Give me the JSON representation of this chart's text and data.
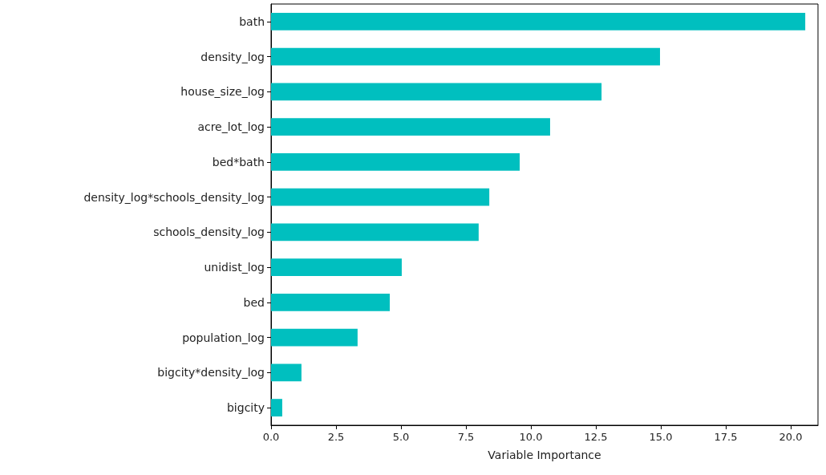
{
  "chart_data": {
    "type": "bar",
    "orientation": "horizontal",
    "xlabel": "Variable Importance",
    "categories": [
      "bath",
      "density_log",
      "house_size_log",
      "acre_lot_log",
      "bed*bath",
      "density_log*schools_density_log",
      "schools_density_log",
      "unidist_log",
      "bed",
      "population_log",
      "bigcity*density_log",
      "bigcity"
    ],
    "values": [
      20.56,
      14.97,
      12.72,
      10.74,
      9.57,
      8.4,
      7.99,
      5.03,
      4.57,
      3.33,
      1.17,
      0.43
    ],
    "color": "#00bfbf",
    "xlim": [
      0,
      21.05
    ],
    "xticks": [
      {
        "value": 0,
        "label": "0.0"
      },
      2.5,
      {
        "value": 5,
        "label": "5.0"
      },
      {
        "value": 7.5,
        "label": "7.5"
      },
      {
        "value": 10,
        "label": "10.0"
      },
      12.5,
      {
        "value": 15,
        "label": "15.0"
      },
      17.5,
      {
        "value": 20,
        "label": "20.0"
      }
    ]
  }
}
